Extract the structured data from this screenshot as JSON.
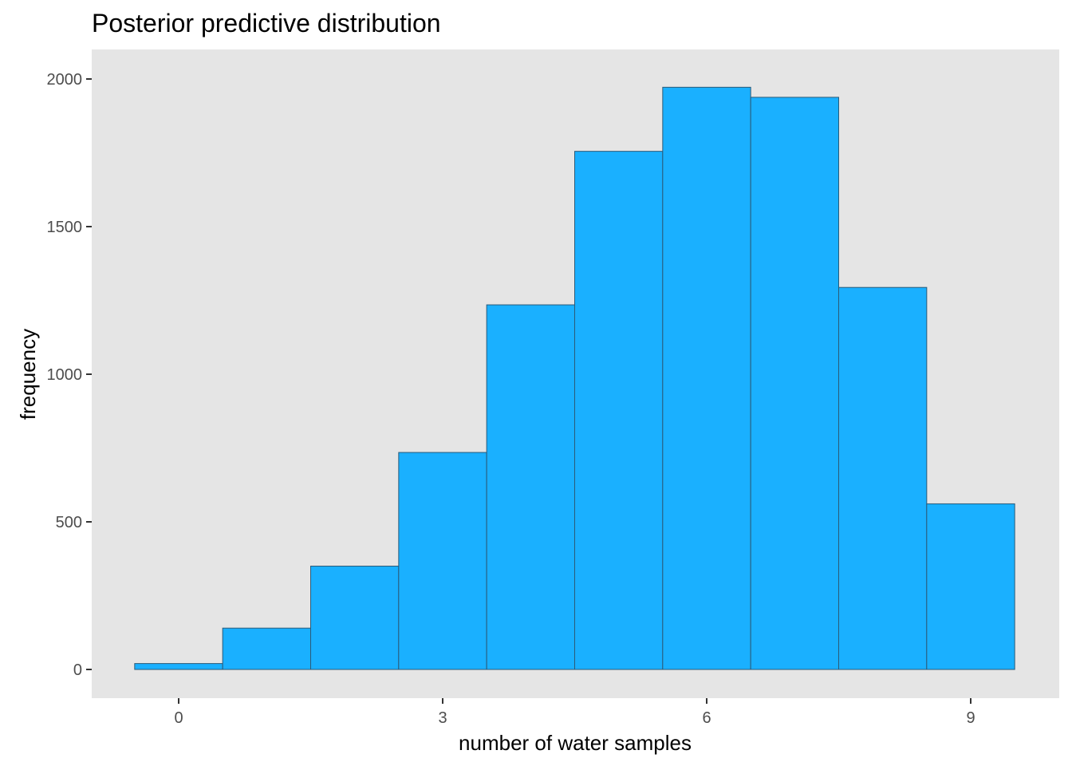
{
  "chart_data": {
    "type": "bar",
    "title": "Posterior predictive distribution",
    "xlabel": "number of water samples",
    "ylabel": "frequency",
    "bins": [
      {
        "x": 0,
        "value": 20
      },
      {
        "x": 1,
        "value": 140
      },
      {
        "x": 2,
        "value": 350
      },
      {
        "x": 3,
        "value": 735
      },
      {
        "x": 4,
        "value": 1235
      },
      {
        "x": 5,
        "value": 1755
      },
      {
        "x": 6,
        "value": 1972
      },
      {
        "x": 7,
        "value": 1938
      },
      {
        "x": 8,
        "value": 1294
      },
      {
        "x": 9,
        "value": 561
      }
    ],
    "bin_width": 1,
    "xlim": [
      -0.5,
      9.5
    ],
    "ylim": [
      0,
      2000
    ],
    "x_ticks": [
      0,
      3,
      6,
      9
    ],
    "y_ticks": [
      0,
      500,
      1000,
      1500,
      2000
    ],
    "x_tick_labels": [
      "0",
      "3",
      "6",
      "9"
    ],
    "y_tick_labels": [
      "0",
      "500",
      "1000",
      "1500",
      "2000"
    ],
    "grid": false,
    "colors": {
      "panel_background": "#e5e5e5",
      "bar_fill": "#1ab0ff",
      "bar_outline": "#2b5a78",
      "tick_text": "#4d4d4d",
      "tick_mark": "#333333"
    }
  }
}
